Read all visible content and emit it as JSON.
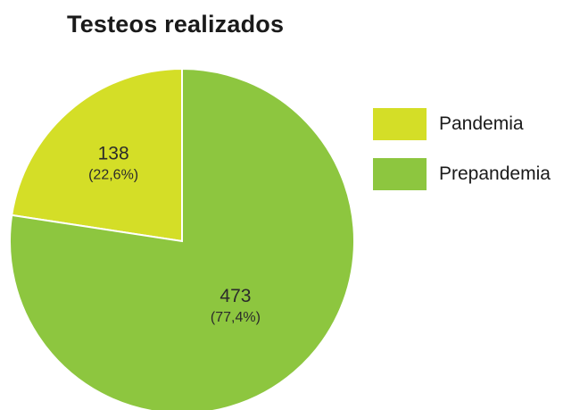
{
  "chart_data": {
    "type": "pie",
    "title": "Testeos realizados",
    "slices": [
      {
        "label": "Pandemia",
        "value": 138,
        "percent_label": "(22,6%)",
        "color": "#d4de27"
      },
      {
        "label": "Prepandemia",
        "value": 473,
        "percent_label": "(77,4%)",
        "color": "#8dc63f"
      }
    ],
    "legend": {
      "position": "right",
      "entries": [
        "Pandemia",
        "Prepandemia"
      ]
    },
    "slice_border_color": "#ffffff"
  }
}
